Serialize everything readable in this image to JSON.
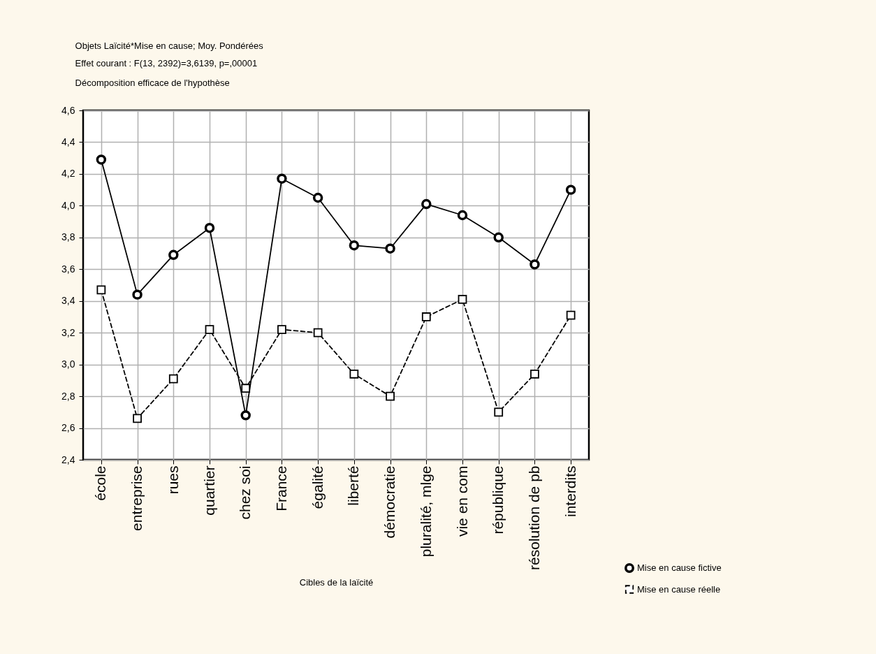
{
  "chart_data": {
    "type": "line",
    "title": "Objets Laïcité*Mise en cause; Moy. Pondérées",
    "subtitle": "Effet courant : F(13, 2392)=3,6139, p=,00001",
    "annotations": [
      "Décomposition efficace de l'hypothèse"
    ],
    "xlabel": "Cibles de la laïcité",
    "categories": [
      "école",
      "entreprise",
      "rues",
      "quartier",
      "chez soi",
      "France",
      "égalité",
      "liberté",
      "démocratie",
      "pluralité, mlge",
      "vie en com",
      "république",
      "résolution de pb",
      "interdits"
    ],
    "series": [
      {
        "name": "Mise en cause fictive",
        "color": "#000000",
        "marker": "circle",
        "line_style": "solid",
        "values": [
          4.29,
          3.44,
          3.69,
          3.86,
          2.68,
          4.17,
          4.05,
          3.75,
          3.73,
          4.01,
          3.94,
          3.8,
          3.63,
          4.1
        ]
      },
      {
        "name": "Mise en cause réelle",
        "color": "#000000",
        "marker": "square",
        "line_style": "dashed",
        "values": [
          3.47,
          2.66,
          2.91,
          3.22,
          2.85,
          3.22,
          3.2,
          2.94,
          2.8,
          3.3,
          3.41,
          2.7,
          2.94,
          3.31
        ]
      }
    ],
    "ylim": [
      2.4,
      4.6
    ],
    "yticks": [
      {
        "value": 2.4,
        "label": "2,4"
      },
      {
        "value": 2.6,
        "label": "2,6"
      },
      {
        "value": 2.8,
        "label": "2,8"
      },
      {
        "value": 3.0,
        "label": "3,0"
      },
      {
        "value": 3.2,
        "label": "3,2"
      },
      {
        "value": 3.4,
        "label": "3,4"
      },
      {
        "value": 3.6,
        "label": "3,6"
      },
      {
        "value": 3.8,
        "label": "3,8"
      },
      {
        "value": 4.0,
        "label": "4,0"
      },
      {
        "value": 4.2,
        "label": "4,2"
      },
      {
        "value": 4.4,
        "label": "4,4"
      },
      {
        "value": 4.6,
        "label": "4,6"
      }
    ],
    "grid": true,
    "legend": "bottom right"
  }
}
